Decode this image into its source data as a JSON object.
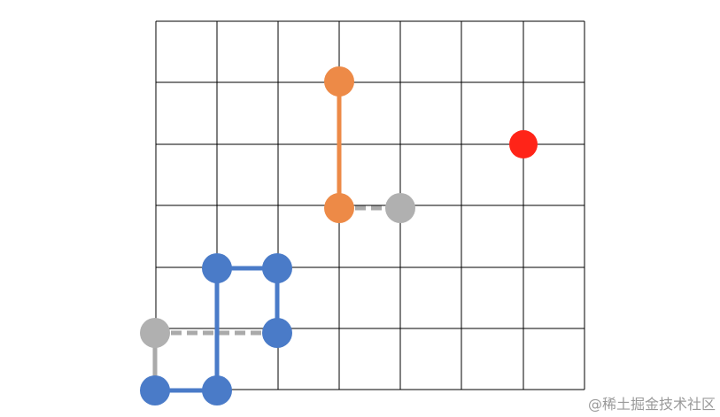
{
  "watermark": "@稀土掘金技术社区"
}
